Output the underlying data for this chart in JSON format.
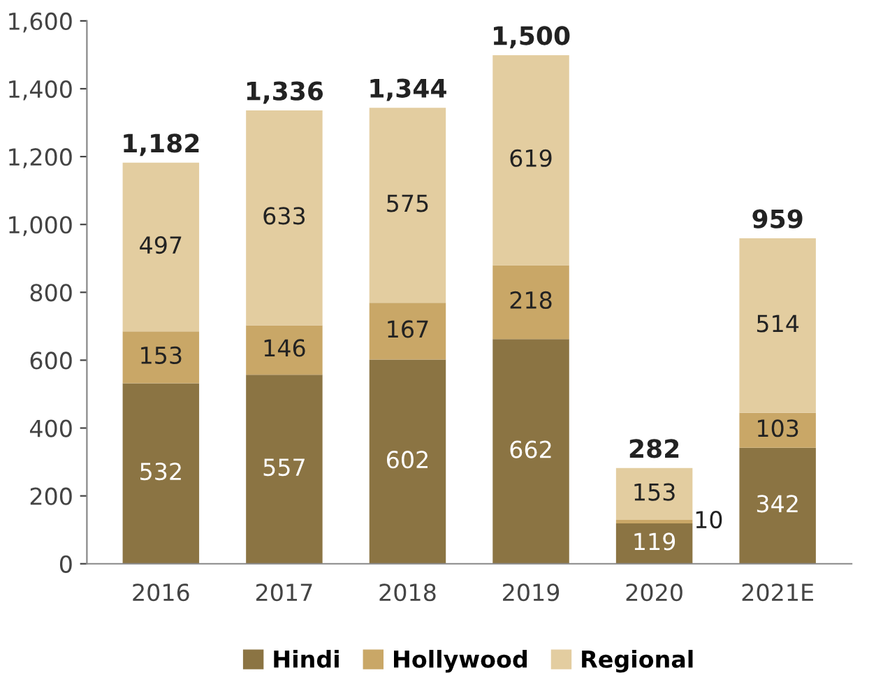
{
  "chart_data": {
    "type": "bar",
    "stacked": true,
    "categories": [
      "2016",
      "2017",
      "2018",
      "2019",
      "2020",
      "2021E"
    ],
    "series": [
      {
        "name": "Hindi",
        "color": "#8b7443",
        "values": [
          532,
          557,
          602,
          662,
          119,
          342
        ]
      },
      {
        "name": "Hollywood",
        "color": "#c9a767",
        "values": [
          153,
          146,
          167,
          218,
          10,
          103
        ]
      },
      {
        "name": "Regional",
        "color": "#e3cda0",
        "values": [
          497,
          633,
          575,
          619,
          153,
          514
        ]
      }
    ],
    "totals": [
      "1,182",
      "1,336",
      "1,344",
      "1,500",
      "282",
      "959"
    ],
    "data_labels": true,
    "ylim": [
      0,
      1600
    ],
    "yticks": [
      0,
      {
        "value": 200,
        "label": "200"
      },
      {
        "value": 400,
        "label": "400"
      },
      {
        "value": 600,
        "label": "600"
      },
      {
        "value": 800,
        "label": "800"
      },
      {
        "value": 1000,
        "label": "1,000"
      },
      {
        "value": 1200,
        "label": "1,200"
      },
      {
        "value": 1400,
        "label": "1,400"
      },
      {
        "value": 1600,
        "label": "1,600"
      }
    ],
    "grid": false,
    "legend": "bottom"
  }
}
